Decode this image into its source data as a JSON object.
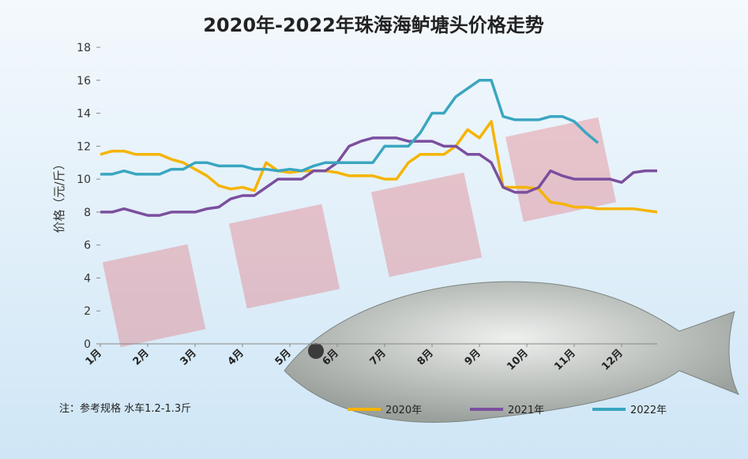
{
  "chart_data": {
    "type": "line",
    "title": "2020年-2022年珠海海鲈塘头价格走势",
    "y_label": "价格（元/斤）",
    "note": "注：参考规格  水车1.2-1.3斤",
    "categories": [
      "1月",
      null,
      null,
      null,
      "2月",
      null,
      null,
      null,
      "3月",
      null,
      null,
      null,
      "4月",
      null,
      null,
      null,
      "5月",
      null,
      null,
      null,
      "6月",
      null,
      null,
      null,
      "7月",
      null,
      null,
      null,
      "8月",
      null,
      null,
      null,
      "9月",
      null,
      null,
      null,
      "10月",
      null,
      null,
      null,
      "11月",
      null,
      null,
      null,
      "12月",
      null,
      null,
      null
    ],
    "series": [
      {
        "name": "2020年",
        "color": "#f5b400",
        "values": [
          11.5,
          11.7,
          11.7,
          11.5,
          11.5,
          11.5,
          11.2,
          11,
          10.6,
          10.2,
          9.6,
          9.4,
          9.5,
          9.3,
          11,
          10.5,
          10.4,
          10.5,
          10.5,
          10.5,
          10.4,
          10.2,
          10.2,
          10.2,
          10,
          10,
          11,
          11.5,
          11.5,
          11.5,
          12,
          13,
          12.5,
          13.5,
          9.5,
          9.5,
          9.5,
          9.4,
          8.6,
          8.5,
          8.3,
          8.3,
          8.2,
          8.2,
          8.2,
          8.2,
          8.1,
          8
        ]
      },
      {
        "name": "2021年",
        "color": "#7b4f9e",
        "values": [
          8,
          8,
          8.2,
          8,
          7.8,
          7.8,
          8,
          8,
          8,
          8.2,
          8.3,
          8.8,
          9,
          9,
          9.5,
          10,
          10,
          10,
          10.5,
          10.5,
          11,
          12,
          12.3,
          12.5,
          12.5,
          12.5,
          12.3,
          12.3,
          12.3,
          12,
          12,
          11.5,
          11.5,
          11,
          9.5,
          9.2,
          9.2,
          9.5,
          10.5,
          10.2,
          10,
          10,
          10,
          10,
          9.8,
          10.4,
          10.5,
          10.5
        ]
      },
      {
        "name": "2022年",
        "color": "#3aa6c0",
        "values": [
          10.3,
          10.3,
          10.5,
          10.3,
          10.3,
          10.3,
          10.6,
          10.6,
          11,
          11,
          10.8,
          10.8,
          10.8,
          10.6,
          10.6,
          10.5,
          10.6,
          10.5,
          10.8,
          11,
          11,
          11,
          11,
          11,
          12,
          12,
          12,
          12.8,
          14,
          14,
          15,
          15.5,
          16,
          16,
          13.8,
          13.6,
          13.6,
          13.6,
          13.8,
          13.8,
          13.5,
          12.8,
          12.2,
          null,
          null,
          null,
          null,
          null
        ]
      }
    ],
    "ylim": [
      0,
      18
    ],
    "yticks": [
      0,
      2,
      4,
      6,
      8,
      10,
      12,
      14,
      16,
      18
    ],
    "grid": false
  }
}
